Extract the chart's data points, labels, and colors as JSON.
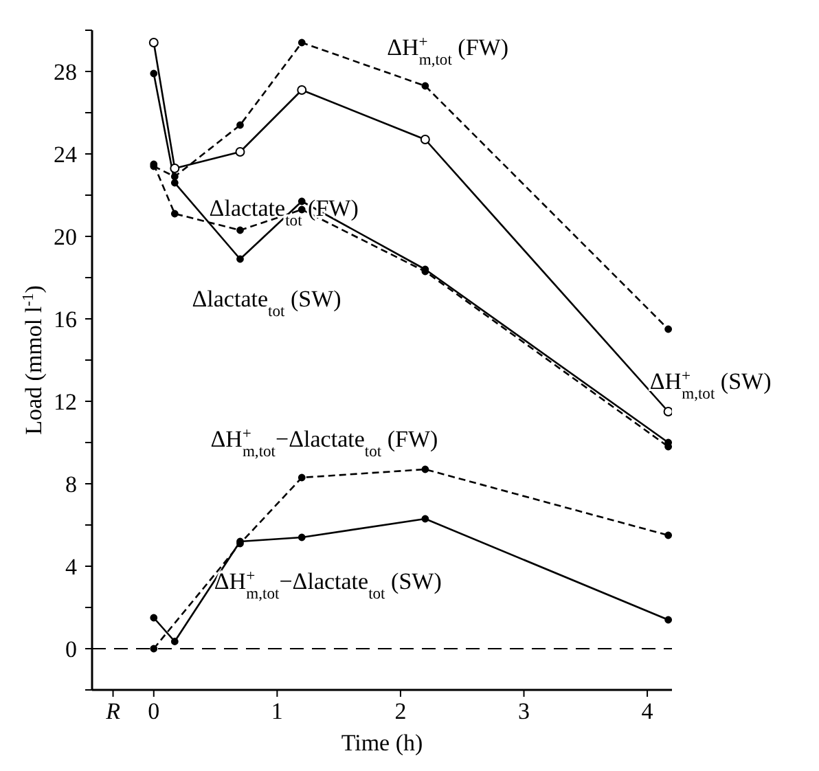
{
  "chart_data": {
    "type": "line",
    "xlabel": "Time (h)",
    "ylabel": "Load (mmol l$^{-1}$)",
    "x": [
      0,
      0.17,
      0.7,
      1.2,
      2.2,
      4.17
    ],
    "series": [
      {
        "name": "ΔH$^{+}$$_{m,tot}$ (FW)",
        "color": "#000000",
        "line_style": "dashed",
        "marker": "circle",
        "values": [
          23.4,
          22.9,
          25.4,
          29.4,
          27.3,
          15.5
        ]
      },
      {
        "name": "ΔH$^{+}$$_{m,tot}$ (SW)",
        "color": "#000000",
        "line_style": "solid",
        "marker": "circle",
        "values": [
          29.4,
          23.3,
          24.1,
          27.1,
          24.7,
          11.5
        ]
      },
      {
        "name": "Δlactate$_{tot}$ (SW)",
        "color": "#000000",
        "line_style": "solid",
        "marker": "circle",
        "values": [
          27.9,
          22.6,
          18.9,
          21.7,
          18.4,
          10.0
        ]
      },
      {
        "name": "Δlactate$_{tot}$ (FW)",
        "color": "#000000",
        "line_style": "dashed",
        "marker": "circle",
        "values": [
          23.5,
          21.1,
          20.3,
          21.3,
          18.3,
          9.8
        ]
      },
      {
        "name": "ΔH$^{+}$$_{m,tot}$−Δlactate$_{tot}$ (FW)",
        "color": "#000000",
        "line_style": "dashed",
        "marker": "circle",
        "values": [
          0,
          null,
          5.1,
          8.3,
          8.7,
          5.5
        ]
      },
      {
        "name": "ΔH$^{+}$$_{m,tot}$−Δlactate$_{tot}$ (SW)",
        "color": "#000000",
        "line_style": "solid",
        "marker": "circle",
        "values": [
          1.5,
          0.35,
          5.2,
          5.4,
          6.3,
          1.4
        ]
      }
    ],
    "xlim": [
      -0.5,
      4.2
    ],
    "xticks": [
      {
        "value": -0.33,
        "label": "R"
      },
      0,
      1,
      2,
      3,
      4
    ],
    "ylim": [
      -2,
      30
    ],
    "yticks": [
      {
        "value": -2,
        "label": null
      },
      0,
      {
        "value": 2,
        "label": null
      },
      4,
      {
        "value": 6,
        "label": null
      },
      8,
      {
        "value": 10,
        "label": null
      },
      12,
      {
        "value": 14,
        "label": null
      },
      16,
      {
        "value": 18,
        "label": null
      },
      20,
      {
        "value": 22,
        "label": null
      },
      24,
      {
        "value": 26,
        "label": null
      },
      28,
      {
        "value": 30,
        "label": null
      }
    ],
    "ref_lines": [
      {
        "axis": "y",
        "value": 0,
        "line_style": "dashed",
        "color": "#000000"
      }
    ],
    "grid": false,
    "legend": false
  }
}
